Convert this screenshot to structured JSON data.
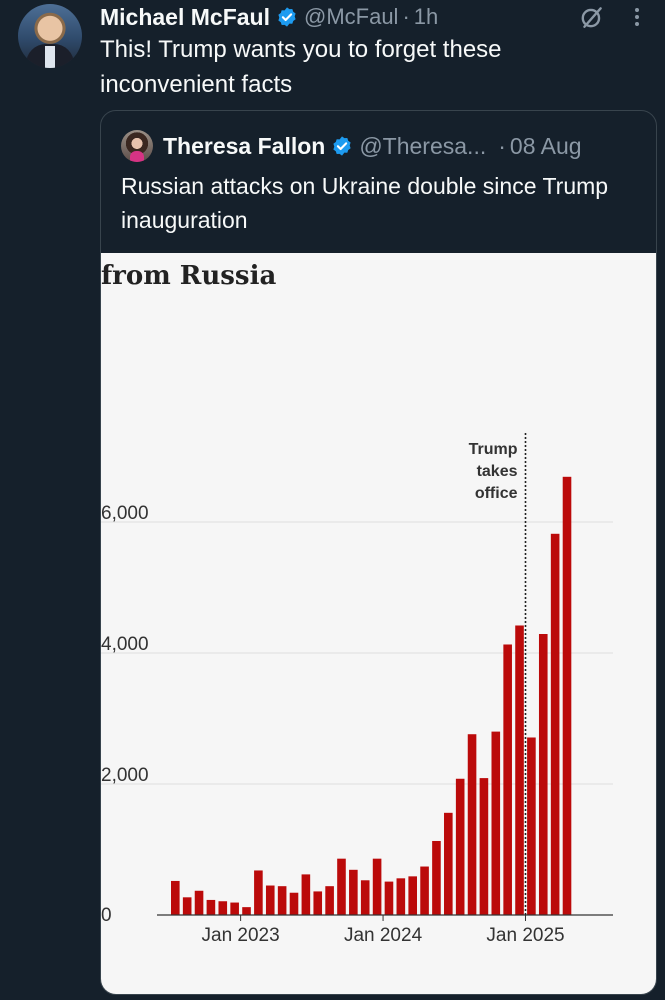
{
  "tweet": {
    "author_name": "Michael McFaul",
    "handle": "@McFaul",
    "separator": "·",
    "time": "1h",
    "text": "This! Trump wants you to forget these inconvenient facts",
    "icons": [
      "verified-badge-icon",
      "grok-icon",
      "more-icon"
    ]
  },
  "quote": {
    "author_name": "Theresa Fallon",
    "handle": "@Theresa...",
    "separator": "·",
    "date": "08 Aug",
    "text": "Russian attacks on Ukraine double since Trump inauguration"
  },
  "chart_data": {
    "type": "bar",
    "title": "from Russia",
    "annotation": "Trump takes office",
    "annotation_lines": [
      "Trump",
      "takes",
      "office"
    ],
    "annotation_month_index": 30,
    "xlabel": "",
    "ylabel": "",
    "ylim": [
      0,
      7000
    ],
    "y_ticks": [
      0,
      2000,
      4000,
      6000
    ],
    "y_tick_labels": [
      "0",
      "2,000",
      "4,000",
      "6,000"
    ],
    "x_tick_labels": [
      {
        "label": "Jan 2023",
        "index": 6
      },
      {
        "label": "Jan 2024",
        "index": 18
      },
      {
        "label": "Jan 2025",
        "index": 30
      }
    ],
    "grid": true,
    "bar_color": "#bb0a0a",
    "values": [
      520,
      270,
      370,
      230,
      210,
      190,
      120,
      680,
      450,
      440,
      340,
      620,
      360,
      440,
      860,
      690,
      530,
      860,
      510,
      560,
      590,
      740,
      1130,
      1560,
      2080,
      2760,
      2090,
      2800,
      4130,
      4420,
      2710,
      4290,
      5820,
      6690
    ]
  },
  "colors": {
    "background": "#15202b",
    "text": "#f7f9f9",
    "muted": "#8b98a5",
    "verified": "#1d9bf0",
    "border": "#38444d"
  }
}
